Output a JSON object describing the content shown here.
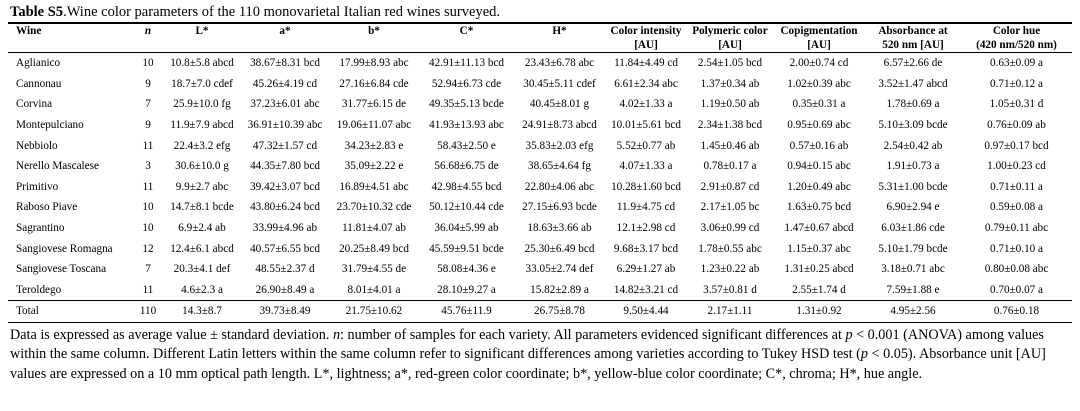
{
  "caption": {
    "label": "Table S5",
    "text": ".Wine color parameters of the 110 monovarietal Italian red wines surveyed."
  },
  "headers": [
    {
      "l1": "Wine",
      "l2": ""
    },
    {
      "l1": "n",
      "l2": ""
    },
    {
      "l1": "L*",
      "l2": ""
    },
    {
      "l1": "a*",
      "l2": ""
    },
    {
      "l1": "b*",
      "l2": ""
    },
    {
      "l1": "C*",
      "l2": ""
    },
    {
      "l1": "H*",
      "l2": ""
    },
    {
      "l1": "Color intensity",
      "l2": "[AU]"
    },
    {
      "l1": "Polymeric color",
      "l2": "[AU]"
    },
    {
      "l1": "Copigmentation",
      "l2": "[AU]"
    },
    {
      "l1": "Absorbance at",
      "l2": "520 nm [AU]"
    },
    {
      "l1": "Color hue",
      "l2": "(420 nm/520 nm)"
    }
  ],
  "rows": [
    [
      "Aglianico",
      "10",
      "10.8±5.8 abcd",
      "38.67±8.31 bcd",
      "17.99±8.93 abc",
      "42.91±11.13 bcd",
      "23.43±6.78 abc",
      "11.84±4.49 cd",
      "2.54±1.05 bcd",
      "2.00±0.74 cd",
      "6.57±2.66 de",
      "0.63±0.09 a"
    ],
    [
      "Cannonau",
      "9",
      "18.7±7.0 cdef",
      "45.26±4.19 cd",
      "27.16±6.84 cde",
      "52.94±6.73 cde",
      "30.45±5.11 cdef",
      "6.61±2.34 abc",
      "1.37±0.34 ab",
      "1.02±0.39 abc",
      "3.52±1.47 abcd",
      "0.71±0.12 a"
    ],
    [
      "Corvina",
      "7",
      "25.9±10.0 fg",
      "37.23±6.01 abc",
      "31.77±6.15 de",
      "49.35±5.13 bcde",
      "40.45±8.01 g",
      "4.02±1.33 a",
      "1.19±0.50 ab",
      "0.35±0.31 a",
      "1.78±0.69 a",
      "1.05±0.31 d"
    ],
    [
      "Montepulciano",
      "9",
      "11.9±7.9 abcd",
      "36.91±10.39 abc",
      "19.06±11.07 abc",
      "41.93±13.93 abc",
      "24.91±8.73 abcd",
      "10.01±5.61 bcd",
      "2.34±1.38 bcd",
      "0.95±0.69 abc",
      "5.10±3.09 bcde",
      "0.76±0.09 ab"
    ],
    [
      "Nebbiolo",
      "11",
      "22.4±3.2 efg",
      "47.32±1.57 cd",
      "34.23±2.83 e",
      "58.43±2.50 e",
      "35.83±2.03 efg",
      "5.52±0.77 ab",
      "1.45±0.46 ab",
      "0.57±0.16 ab",
      "2.54±0.42 ab",
      "0.97±0.17 bcd"
    ],
    [
      "Nerello Mascalese",
      "3",
      "30.6±10.0 g",
      "44.35±7.80 bcd",
      "35.09±2.22 e",
      "56.68±6.75 de",
      "38.65±4.64 fg",
      "4.07±1.33 a",
      "0.78±0.17 a",
      "0.94±0.15 abc",
      "1.91±0.73 a",
      "1.00±0.23 cd"
    ],
    [
      "Primitivo",
      "11",
      "9.9±2.7 abc",
      "39.42±3.07 bcd",
      "16.89±4.51 abc",
      "42.98±4.55 bcd",
      "22.80±4.06 abc",
      "10.28±1.60 bcd",
      "2.91±0.87 cd",
      "1.20±0.49 abc",
      "5.31±1.00 bcde",
      "0.71±0.11 a"
    ],
    [
      "Raboso Piave",
      "10",
      "14.7±8.1 bcde",
      "43.80±6.24 bcd",
      "23.70±10.32 cde",
      "50.12±10.44 cde",
      "27.15±6.93 bcde",
      "11.9±4.75 cd",
      "2.17±1.05 bc",
      "1.63±0.75 bcd",
      "6.90±2.94 e",
      "0.59±0.08 a"
    ],
    [
      "Sagrantino",
      "10",
      "6.9±2.4 ab",
      "33.99±4.96 ab",
      "11.81±4.07 ab",
      "36.04±5.99 ab",
      "18.63±3.66 ab",
      "12.1±2.98 cd",
      "3.06±0.99 cd",
      "1.47±0.67 abcd",
      "6.03±1.86 cde",
      "0.79±0.11 abc"
    ],
    [
      "Sangiovese Romagna",
      "12",
      "12.4±6.1 abcd",
      "40.57±6.55 bcd",
      "20.25±8.49 bcd",
      "45.59±9.51 bcde",
      "25.30±6.49 bcd",
      "9.68±3.17 bcd",
      "1.78±0.55 abc",
      "1.15±0.37 abc",
      "5.10±1.79 bcde",
      "0.71±0.10 a"
    ],
    [
      "Sangiovese Toscana",
      "7",
      "20.3±4.1 def",
      "48.55±2.37 d",
      "31.79±4.55 de",
      "58.08±4.36 e",
      "33.05±2.74 def",
      "6.29±1.27 ab",
      "1.23±0.22 ab",
      "1.31±0.25 abcd",
      "3.18±0.71 abc",
      "0.80±0.08 abc"
    ],
    [
      "Teroldego",
      "11",
      "4.6±2.3 a",
      "26.90±8.49 a",
      "8.01±4.01 a",
      "28.10±9.27 a",
      "15.82±2.89 a",
      "14.82±3.21 cd",
      "3.57±0.81 d",
      "2.55±1.74 d",
      "7.59±1.88 e",
      "0.70±0.07 a"
    ]
  ],
  "total": [
    "Total",
    "110",
    "14.3±8.7",
    "39.73±8.49",
    "21.75±10.62",
    "45.76±11.9",
    "26.75±8.78",
    "9.50±4.44",
    "2.17±1.11",
    "1.31±0.92",
    "4.95±2.56",
    "0.76±0.18"
  ],
  "note": {
    "s1": "Data is expressed as average value ± standard deviation. ",
    "n_italic": "n",
    "s2": ": number of samples for each variety. All parameters evidenced significant differences at ",
    "p1": "p",
    "s3": " < 0.001 (ANOVA) among values within the same column. Different Latin letters within the same column refer to significant differences among varieties according to Tukey HSD test (",
    "p2": "p",
    "s4": " < 0.05). Absorbance unit [AU] values are expressed on a 10 mm optical path length. L*, lightness; a*, red-green color coordinate; b*, yellow-blue color coordinate; C*, chroma; H*, hue angle."
  }
}
